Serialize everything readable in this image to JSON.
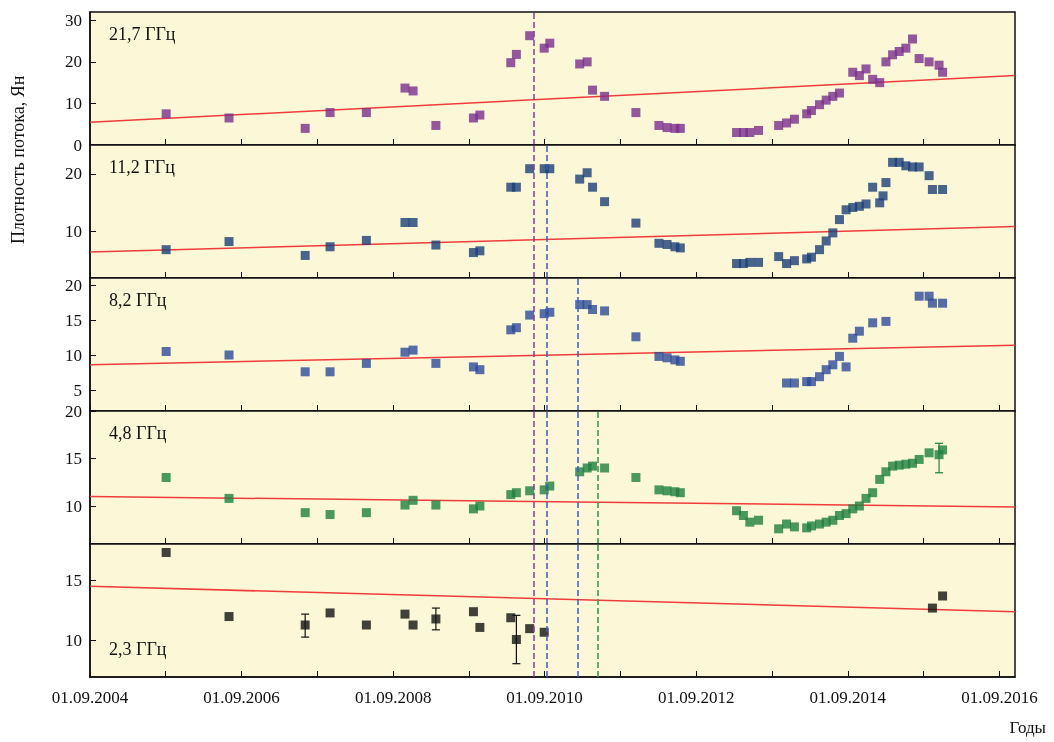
{
  "chart_data": [
    {
      "type": "scatter",
      "title": "21,7 ГГц",
      "ylabel": "Плотность потока, Ян",
      "marker": "square",
      "tick_labels": "y",
      "xlim": [
        "2004-09-01",
        "2016-11-15"
      ],
      "ylim": [
        0,
        32
      ],
      "yticks": [
        0,
        10,
        20,
        30
      ],
      "xticks": [
        {
          "value": "2004-09-01",
          "label": null
        },
        {
          "value": "2005-09-01",
          "label": null
        },
        {
          "value": "2006-09-01",
          "label": null
        },
        {
          "value": "2007-09-01",
          "label": null
        },
        {
          "value": "2008-09-01",
          "label": null
        },
        {
          "value": "2009-09-01",
          "label": null
        },
        {
          "value": "2010-09-01",
          "label": null
        },
        {
          "value": "2011-09-01",
          "label": null
        },
        {
          "value": "2012-09-01",
          "label": null
        },
        {
          "value": "2013-09-01",
          "label": null
        },
        {
          "value": "2014-09-01",
          "label": null
        },
        {
          "value": "2015-09-01",
          "label": null
        },
        {
          "value": "2016-09-01",
          "label": null
        }
      ],
      "series": [
        {
          "color": "#7a2e8c",
          "x": [
            "2005-09-03",
            "2006-07-03",
            "2007-07-05",
            "2007-11-02",
            "2008-04-25",
            "2008-10-28",
            "2008-12-06",
            "2009-03-26",
            "2009-09-23",
            "2009-10-24",
            "2010-03-22",
            "2010-04-18",
            "2010-06-21",
            "2010-08-30",
            "2010-09-26",
            "2011-02-17",
            "2011-03-25",
            "2011-04-20",
            "2011-06-17",
            "2011-11-15",
            "2012-03-05",
            "2012-04-13",
            "2012-05-21",
            "2012-06-16",
            "2013-03-14",
            "2013-04-16",
            "2013-05-17",
            "2013-06-28",
            "2013-10-03",
            "2013-11-10",
            "2013-12-18",
            "2014-02-15",
            "2014-03-10",
            "2014-04-18",
            "2014-05-20",
            "2014-06-21",
            "2014-07-23",
            "2014-09-25",
            "2014-10-27",
            "2014-11-28",
            "2014-12-30",
            "2015-02-02",
            "2015-03-04",
            "2015-04-05",
            "2015-05-07",
            "2015-06-08",
            "2015-07-10",
            "2015-08-11",
            "2015-09-28",
            "2015-11-15",
            "2015-12-02"
          ],
          "values": [
            7.5,
            6.5,
            4,
            7.8,
            7.8,
            13.7,
            13,
            4.7,
            6.5,
            7.2,
            19.8,
            21.8,
            26.3,
            23.3,
            24.5,
            19.5,
            20,
            13.2,
            11.7,
            7.8,
            4.7,
            4.2,
            4,
            4,
            3,
            3,
            3,
            3.5,
            4.7,
            5.3,
            6.2,
            7.5,
            8.3,
            9.7,
            10.8,
            11.7,
            12.5,
            17.5,
            16.7,
            18.3,
            15.8,
            15,
            20,
            21.7,
            22.5,
            23.3,
            25.5,
            20.8,
            20,
            19.2,
            17.5
          ]
        },
        {
          "type": "line",
          "marker": "none",
          "color": "#f03c3c",
          "x": [
            "2004-09-01",
            "2016-11-15"
          ],
          "values": [
            5.5,
            16.7
          ]
        }
      ],
      "ref_lines": [
        {
          "axis": "x",
          "value": "2010-07-13",
          "color": "#8a3ca0",
          "line_style": "dashed"
        }
      ]
    },
    {
      "type": "scatter",
      "title": "11,2 ГГц",
      "marker": "square",
      "tick_labels": "y",
      "xlim": [
        "2004-09-01",
        "2016-11-15"
      ],
      "ylim": [
        2,
        25
      ],
      "yticks": [
        10,
        20
      ],
      "xticks": [
        {
          "value": "2004-09-01",
          "label": null
        },
        {
          "value": "2005-09-01",
          "label": null
        },
        {
          "value": "2006-09-01",
          "label": null
        },
        {
          "value": "2007-09-01",
          "label": null
        },
        {
          "value": "2008-09-01",
          "label": null
        },
        {
          "value": "2009-09-01",
          "label": null
        },
        {
          "value": "2010-09-01",
          "label": null
        },
        {
          "value": "2011-09-01",
          "label": null
        },
        {
          "value": "2012-09-01",
          "label": null
        },
        {
          "value": "2013-09-01",
          "label": null
        },
        {
          "value": "2014-09-01",
          "label": null
        },
        {
          "value": "2015-09-01",
          "label": null
        },
        {
          "value": "2016-09-01",
          "label": null
        }
      ],
      "series": [
        {
          "color": "#1a3f78",
          "x": [
            "2005-09-03",
            "2006-07-03",
            "2007-07-05",
            "2007-11-02",
            "2008-04-25",
            "2008-10-28",
            "2008-12-06",
            "2009-03-26",
            "2009-09-23",
            "2009-10-24",
            "2010-03-22",
            "2010-04-18",
            "2010-06-21",
            "2010-08-30",
            "2010-09-26",
            "2011-02-17",
            "2011-03-25",
            "2011-04-20",
            "2011-06-17",
            "2011-11-15",
            "2012-03-05",
            "2012-04-13",
            "2012-05-21",
            "2012-06-16",
            "2013-03-14",
            "2013-04-16",
            "2013-05-17",
            "2013-06-28",
            "2013-10-03",
            "2013-11-10",
            "2013-12-18",
            "2014-02-15",
            "2014-03-10",
            "2014-04-18",
            "2014-05-20",
            "2014-06-21",
            "2014-07-23",
            "2014-08-24",
            "2014-09-25",
            "2014-10-27",
            "2014-11-28",
            "2014-12-30",
            "2015-02-02",
            "2015-02-18",
            "2015-03-04",
            "2015-04-05",
            "2015-05-07",
            "2015-06-08",
            "2015-07-10",
            "2015-08-11",
            "2015-09-28",
            "2015-10-14",
            "2015-12-02"
          ],
          "values": [
            6.9,
            8.3,
            5.9,
            7.4,
            8.5,
            11.6,
            11.6,
            7.7,
            6.4,
            6.7,
            17.7,
            17.7,
            20.9,
            20.9,
            20.9,
            19.1,
            20.2,
            17.7,
            15.2,
            11.5,
            8,
            7.8,
            7.4,
            7.2,
            4.5,
            4.5,
            4.7,
            4.7,
            5.7,
            4.5,
            5,
            5.3,
            5.6,
            6.9,
            8.4,
            9.8,
            12.1,
            13.8,
            14.2,
            14.4,
            14.8,
            17.7,
            15,
            16.2,
            18.5,
            22,
            22,
            21.4,
            21.2,
            21.2,
            19.7,
            17.3,
            17.3
          ]
        },
        {
          "type": "line",
          "marker": "none",
          "color": "#f03c3c",
          "x": [
            "2004-09-01",
            "2016-11-15"
          ],
          "values": [
            6.5,
            10.9
          ]
        }
      ],
      "ref_lines": [
        {
          "axis": "x",
          "value": "2010-07-13",
          "color": "#8a3ca0",
          "line_style": "dashed"
        },
        {
          "axis": "x",
          "value": "2010-09-10",
          "color": "#3a5cc8",
          "line_style": "dashed"
        }
      ]
    },
    {
      "type": "scatter",
      "title": "8,2 ГГц",
      "marker": "square",
      "tick_labels": "y",
      "xlim": [
        "2004-09-01",
        "2016-11-15"
      ],
      "ylim": [
        2,
        21
      ],
      "yticks": [
        5,
        10,
        15,
        20
      ],
      "xticks": [
        {
          "value": "2004-09-01",
          "label": null
        },
        {
          "value": "2005-09-01",
          "label": null
        },
        {
          "value": "2006-09-01",
          "label": null
        },
        {
          "value": "2007-09-01",
          "label": null
        },
        {
          "value": "2008-09-01",
          "label": null
        },
        {
          "value": "2009-09-01",
          "label": null
        },
        {
          "value": "2010-09-01",
          "label": null
        },
        {
          "value": "2011-09-01",
          "label": null
        },
        {
          "value": "2012-09-01",
          "label": null
        },
        {
          "value": "2013-09-01",
          "label": null
        },
        {
          "value": "2014-09-01",
          "label": null
        },
        {
          "value": "2015-09-01",
          "label": null
        },
        {
          "value": "2016-09-01",
          "label": null
        }
      ],
      "series": [
        {
          "color": "#2d4a9a",
          "x": [
            "2005-09-03",
            "2006-07-03",
            "2007-07-05",
            "2007-11-02",
            "2008-04-25",
            "2008-10-28",
            "2008-12-06",
            "2009-03-26",
            "2009-09-23",
            "2009-10-24",
            "2010-03-22",
            "2010-04-18",
            "2010-06-21",
            "2010-08-30",
            "2010-09-26",
            "2011-02-17",
            "2011-03-25",
            "2011-04-20",
            "2011-06-17",
            "2011-11-15",
            "2012-03-05",
            "2012-04-13",
            "2012-05-21",
            "2012-06-16",
            "2013-11-10",
            "2013-12-18",
            "2014-02-15",
            "2014-03-10",
            "2014-04-18",
            "2014-05-20",
            "2014-06-21",
            "2014-07-23",
            "2014-08-24",
            "2014-09-25",
            "2014-10-27",
            "2014-12-30",
            "2015-03-04",
            "2015-08-11",
            "2015-09-28",
            "2015-10-14",
            "2015-12-02"
          ],
          "values": [
            10.5,
            10,
            7.6,
            7.6,
            8.8,
            10.4,
            10.7,
            8.8,
            8.3,
            7.9,
            13.6,
            13.9,
            15.7,
            15.9,
            16.1,
            17.2,
            17.2,
            16.5,
            16.3,
            12.6,
            9.8,
            9.6,
            9.3,
            9.1,
            6,
            6,
            6.2,
            6.2,
            6.9,
            7.9,
            8.6,
            9.8,
            8.3,
            12.4,
            13.4,
            14.6,
            14.8,
            18.4,
            18.4,
            17.4,
            17.4
          ]
        },
        {
          "type": "line",
          "marker": "none",
          "color": "#f03c3c",
          "x": [
            "2004-09-01",
            "2016-11-15"
          ],
          "values": [
            8.6,
            11.4
          ]
        }
      ],
      "ref_lines": [
        {
          "axis": "x",
          "value": "2010-07-13",
          "color": "#8a3ca0",
          "line_style": "dashed"
        },
        {
          "axis": "x",
          "value": "2010-09-10",
          "color": "#3a5cc8",
          "line_style": "dashed"
        },
        {
          "axis": "x",
          "value": "2011-02-06",
          "color": "#3a5cc8",
          "line_style": "dashed"
        }
      ]
    },
    {
      "type": "scatter",
      "title": "4,8 ГГц",
      "marker": "square",
      "tick_labels": "y",
      "xlim": [
        "2004-09-01",
        "2016-11-15"
      ],
      "ylim": [
        6,
        20
      ],
      "yticks": [
        10,
        15,
        20
      ],
      "xticks": [
        {
          "value": "2004-09-01",
          "label": null
        },
        {
          "value": "2005-09-01",
          "label": null
        },
        {
          "value": "2006-09-01",
          "label": null
        },
        {
          "value": "2007-09-01",
          "label": null
        },
        {
          "value": "2008-09-01",
          "label": null
        },
        {
          "value": "2009-09-01",
          "label": null
        },
        {
          "value": "2010-09-01",
          "label": null
        },
        {
          "value": "2011-09-01",
          "label": null
        },
        {
          "value": "2012-09-01",
          "label": null
        },
        {
          "value": "2013-09-01",
          "label": null
        },
        {
          "value": "2014-09-01",
          "label": null
        },
        {
          "value": "2015-09-01",
          "label": null
        },
        {
          "value": "2016-09-01",
          "label": null
        }
      ],
      "series": [
        {
          "color": "#1e8040",
          "x": [
            "2005-09-03",
            "2006-07-03",
            "2007-07-05",
            "2007-11-02",
            "2008-04-25",
            "2008-10-28",
            "2008-12-06",
            "2009-03-26",
            "2009-09-23",
            "2009-10-24",
            "2010-03-22",
            "2010-04-18",
            "2010-06-21",
            "2010-08-30",
            "2010-09-26",
            "2011-02-17",
            "2011-03-25",
            "2011-04-20",
            "2011-06-17",
            "2011-11-15",
            "2012-03-05",
            "2012-04-13",
            "2012-05-21",
            "2012-06-16",
            "2013-03-14",
            "2013-04-16",
            "2013-05-17",
            "2013-06-28",
            "2013-10-03",
            "2013-11-10",
            "2013-12-18",
            "2014-02-15",
            "2014-03-10",
            "2014-04-18",
            "2014-05-20",
            "2014-06-21",
            "2014-07-23",
            "2014-08-24",
            "2014-09-25",
            "2014-10-27",
            "2014-11-28",
            "2014-12-30",
            "2015-02-02",
            "2015-03-04",
            "2015-04-05",
            "2015-05-07",
            "2015-06-08",
            "2015-07-10",
            "2015-08-11",
            "2015-09-28",
            "2015-11-15",
            "2015-12-02"
          ],
          "values": [
            13,
            10.8,
            9.3,
            9.1,
            9.3,
            10.1,
            10.6,
            10.1,
            9.7,
            10,
            11.2,
            11.4,
            11.6,
            11.7,
            12.1,
            13.6,
            14,
            14.2,
            14,
            13,
            11.7,
            11.6,
            11.5,
            11.4,
            9.5,
            9,
            8.3,
            8.5,
            7.6,
            8.1,
            7.8,
            7.7,
            7.9,
            8.1,
            8.3,
            8.5,
            9,
            9.2,
            9.7,
            10,
            10.8,
            11.4,
            12.8,
            13.6,
            14.2,
            14.3,
            14.4,
            14.5,
            14.9,
            15.6,
            15.4,
            15.9
          ],
          "errors": [
            null,
            null,
            null,
            null,
            null,
            null,
            null,
            null,
            null,
            null,
            null,
            null,
            null,
            null,
            null,
            null,
            null,
            null,
            null,
            null,
            null,
            null,
            null,
            null,
            null,
            null,
            null,
            null,
            null,
            null,
            null,
            null,
            null,
            null,
            null,
            null,
            null,
            null,
            null,
            null,
            null,
            null,
            null,
            null,
            null,
            null,
            null,
            null,
            null,
            null,
            [
              13.5,
              16.6
            ],
            null
          ]
        },
        {
          "type": "line",
          "marker": "none",
          "color": "#f03c3c",
          "x": [
            "2004-09-01",
            "2016-11-15"
          ],
          "values": [
            11,
            9.9
          ]
        }
      ],
      "ref_lines": [
        {
          "axis": "x",
          "value": "2010-07-13",
          "color": "#8a3ca0",
          "line_style": "dashed"
        },
        {
          "axis": "x",
          "value": "2010-09-10",
          "color": "#3a5cc8",
          "line_style": "dashed"
        },
        {
          "axis": "x",
          "value": "2011-02-06",
          "color": "#3a5cc8",
          "line_style": "dashed"
        },
        {
          "axis": "x",
          "value": "2011-05-13",
          "color": "#2a9a4a",
          "line_style": "dashed"
        }
      ]
    },
    {
      "type": "scatter",
      "title": "2,3 ГГц",
      "xlabel": "Годы",
      "marker": "square",
      "xlim": [
        "2004-09-01",
        "2016-11-15"
      ],
      "ylim": [
        7,
        18
      ],
      "yticks": [
        10,
        15
      ],
      "xticks": [
        {
          "value": "2004-09-01",
          "label": "01.09.2004"
        },
        {
          "value": "2005-09-01",
          "label": null
        },
        {
          "value": "2006-09-01",
          "label": "01.09.2006"
        },
        {
          "value": "2007-09-01",
          "label": null
        },
        {
          "value": "2008-09-01",
          "label": "01.09.2008"
        },
        {
          "value": "2009-09-01",
          "label": null
        },
        {
          "value": "2010-09-01",
          "label": "01.09.2010"
        },
        {
          "value": "2011-09-01",
          "label": null
        },
        {
          "value": "2012-09-01",
          "label": "01.09.2012"
        },
        {
          "value": "2013-09-01",
          "label": null
        },
        {
          "value": "2014-09-01",
          "label": "01.09.2014"
        },
        {
          "value": "2015-09-01",
          "label": null
        },
        {
          "value": "2016-09-01",
          "label": "01.09.2016"
        }
      ],
      "series": [
        {
          "color": "#111111",
          "x": [
            "2005-09-03",
            "2006-07-03",
            "2007-07-05",
            "2007-11-02",
            "2008-04-25",
            "2008-10-28",
            "2008-12-06",
            "2009-03-26",
            "2009-09-23",
            "2009-10-24",
            "2010-03-22",
            "2010-04-18",
            "2010-06-21",
            "2010-08-30",
            "2015-10-14",
            "2015-12-02"
          ],
          "values": [
            17.3,
            12,
            11.3,
            12.3,
            11.3,
            12.2,
            11.3,
            11.8,
            12.4,
            11.1,
            11.9,
            10.1,
            11,
            10.7,
            12.7,
            13.7
          ],
          "errors": [
            null,
            null,
            [
              10.3,
              12.2
            ],
            null,
            null,
            null,
            null,
            [
              10.9,
              12.7
            ],
            null,
            null,
            null,
            [
              8.1,
              12.1
            ],
            null,
            null,
            null,
            null
          ]
        },
        {
          "type": "line",
          "marker": "none",
          "color": "#f03c3c",
          "x": [
            "2004-09-01",
            "2016-11-15"
          ],
          "values": [
            14.5,
            12.4
          ]
        }
      ],
      "ref_lines": [
        {
          "axis": "x",
          "value": "2010-07-13",
          "color": "#8a3ca0",
          "line_style": "dashed"
        },
        {
          "axis": "x",
          "value": "2010-09-10",
          "color": "#3a5cc8",
          "line_style": "dashed"
        },
        {
          "axis": "x",
          "value": "2011-02-06",
          "color": "#3a5cc8",
          "line_style": "dashed"
        },
        {
          "axis": "x",
          "value": "2011-05-13",
          "color": "#2a9a4a",
          "line_style": "dashed"
        }
      ]
    }
  ]
}
